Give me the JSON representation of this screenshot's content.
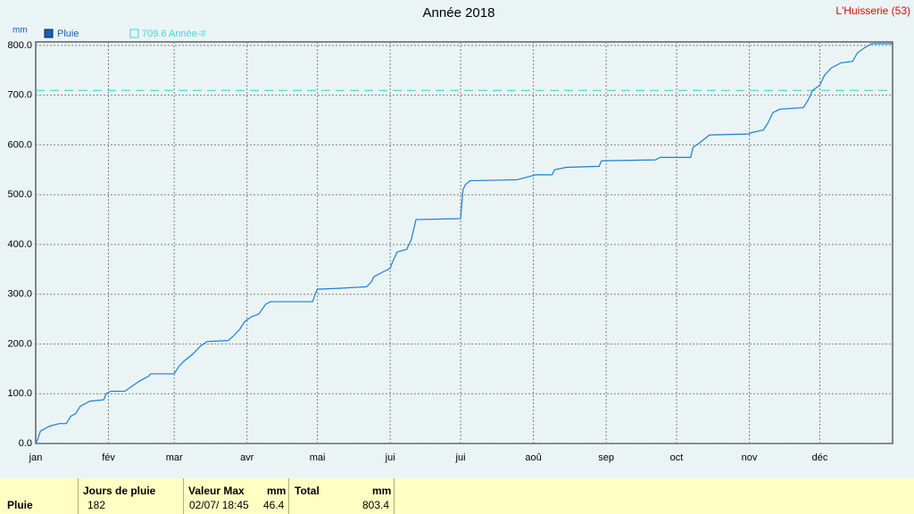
{
  "chart_data": {
    "type": "line",
    "title": "Année 2018",
    "station": "L'Huisserie (53)",
    "y_label": "mm",
    "x": [
      0,
      1,
      2,
      6,
      10,
      13,
      15,
      17,
      19,
      23,
      29,
      30,
      32,
      38,
      41,
      44,
      48,
      49,
      59,
      61,
      63,
      67,
      70,
      73,
      82,
      84,
      87,
      89,
      92,
      95,
      98,
      100,
      118,
      119,
      120,
      130,
      141,
      143,
      144,
      148,
      151,
      152,
      154,
      158,
      160,
      162,
      181,
      182,
      183,
      185,
      205,
      209,
      213,
      220,
      221,
      226,
      240,
      241,
      264,
      266,
      279,
      280,
      283,
      287,
      304,
      305,
      310,
      312,
      314,
      317,
      327,
      329,
      331,
      334,
      336,
      339,
      343,
      348,
      350,
      353,
      356,
      365
    ],
    "series": [
      {
        "name": "Pluie",
        "color": "#1a7fd4",
        "values": [
          0,
          10,
          25,
          35,
          40,
          40,
          55,
          60,
          75,
          85,
          88,
          100,
          105,
          105,
          115,
          125,
          135,
          140,
          140,
          155,
          165,
          180,
          195,
          205,
          207,
          215,
          230,
          245,
          255,
          260,
          280,
          285,
          285,
          300,
          310,
          312,
          315,
          325,
          335,
          345,
          352,
          365,
          385,
          390,
          410,
          450,
          452,
          510,
          520,
          528,
          530,
          535,
          540,
          540,
          550,
          555,
          557,
          568,
          570,
          575,
          575,
          595,
          605,
          620,
          622,
          625,
          630,
          645,
          665,
          672,
          675,
          690,
          710,
          720,
          740,
          755,
          765,
          768,
          785,
          795,
          803.4,
          803.4
        ]
      }
    ],
    "reference": {
      "label": "709.6 Année-#",
      "value": 709.6,
      "color": "#40d8e0"
    },
    "xlim": [
      0,
      365
    ],
    "xticks": [
      {
        "value": 0,
        "label": "jan"
      },
      {
        "value": 31,
        "label": "fév"
      },
      {
        "value": 59,
        "label": "mar"
      },
      {
        "value": 90,
        "label": "avr"
      },
      {
        "value": 120,
        "label": "mai"
      },
      {
        "value": 151,
        "label": "jui"
      },
      {
        "value": 181,
        "label": "jui"
      },
      {
        "value": 212,
        "label": "aoû"
      },
      {
        "value": 243,
        "label": "sep"
      },
      {
        "value": 273,
        "label": "oct"
      },
      {
        "value": 304,
        "label": "nov"
      },
      {
        "value": 334,
        "label": "déc"
      }
    ],
    "ylim": [
      0,
      807
    ],
    "yticks": [
      {
        "value": 0,
        "label": "0.0"
      },
      {
        "value": 100,
        "label": "100.0"
      },
      {
        "value": 200,
        "label": "200.0"
      },
      {
        "value": 300,
        "label": "300.0"
      },
      {
        "value": 400,
        "label": "400.0"
      },
      {
        "value": 500,
        "label": "500.0"
      },
      {
        "value": 600,
        "label": "600.0"
      },
      {
        "value": 700,
        "label": "700.0"
      },
      {
        "value": 800,
        "label": "800.0"
      }
    ],
    "grid": true
  },
  "summary": {
    "row_label": "Pluie",
    "days_header": "Jours de pluie",
    "days": "182",
    "max_header": "Valeur Max",
    "max_unit": "mm",
    "max_date": "02/07/ 18:45",
    "max_value": "46.4",
    "total_header": "Total",
    "total_unit": "mm",
    "total": "803.4"
  }
}
